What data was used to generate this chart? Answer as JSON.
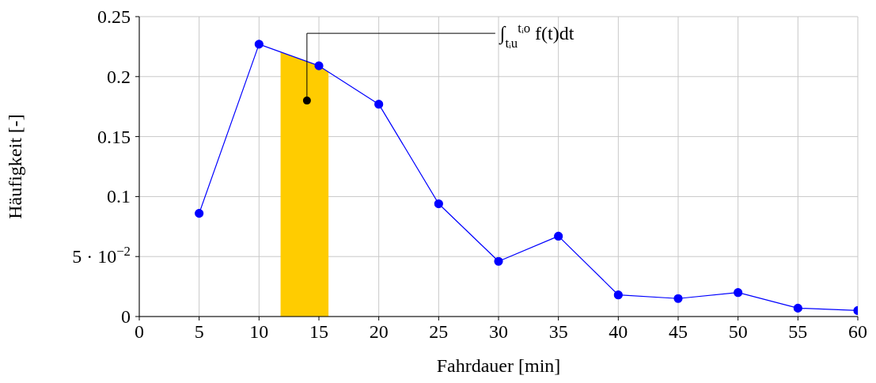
{
  "chart_data": {
    "type": "line",
    "xlabel": "Fahrdauer [min]",
    "ylabel": "Häufigkeit [-]",
    "x": [
      5,
      10,
      15,
      20,
      25,
      30,
      35,
      40,
      45,
      50,
      55,
      60
    ],
    "series": [
      {
        "type": "area",
        "color": "#ffcc00",
        "x": [
          11.8,
          15,
          15.8
        ],
        "values": [
          0.2205,
          0.209,
          0.204
        ]
      },
      {
        "color": "#0000ff",
        "marker": "circle",
        "values": [
          0.086,
          0.227,
          0.209,
          0.177,
          0.094,
          0.046,
          0.067,
          0.018,
          0.015,
          0.02,
          0.007,
          0.005
        ]
      }
    ],
    "xlim": [
      0,
      60
    ],
    "xticks": [
      0,
      5,
      10,
      15,
      20,
      25,
      30,
      35,
      40,
      45,
      50,
      55,
      60
    ],
    "ylim": [
      0,
      0.25
    ],
    "yticks": [
      0,
      {
        "value": 0.05,
        "label": "5 · 10$^{−2}$"
      },
      0.1,
      0.15,
      0.2,
      0.25
    ],
    "annotations": [
      {
        "text": "∫$_{tᵢu}$$^{tᵢo}$ f(t)dt",
        "x": 14,
        "y": 0.18
      }
    ],
    "grid": true,
    "line_style": "solid"
  }
}
